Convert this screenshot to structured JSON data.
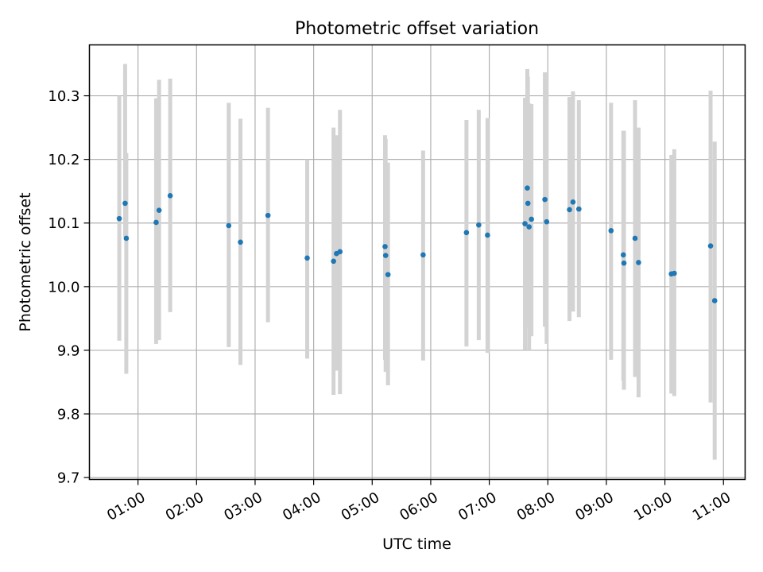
{
  "chart_data": {
    "type": "scatter",
    "title": "Photometric offset variation",
    "xlabel": "UTC time",
    "ylabel": "Photometric offset",
    "x_unit": "hours UTC",
    "xlim": [
      0.17,
      11.37
    ],
    "ylim": [
      9.697,
      10.38
    ],
    "grid": true,
    "x_ticks": [
      {
        "value": 1,
        "label": "01:00"
      },
      {
        "value": 2,
        "label": "02:00"
      },
      {
        "value": 3,
        "label": "03:00"
      },
      {
        "value": 4,
        "label": "04:00"
      },
      {
        "value": 5,
        "label": "05:00"
      },
      {
        "value": 6,
        "label": "06:00"
      },
      {
        "value": 7,
        "label": "07:00"
      },
      {
        "value": 8,
        "label": "08:00"
      },
      {
        "value": 9,
        "label": "09:00"
      },
      {
        "value": 10,
        "label": "10:00"
      },
      {
        "value": 11,
        "label": "11:00"
      }
    ],
    "y_ticks": [
      {
        "value": 9.7,
        "label": "9.7"
      },
      {
        "value": 9.8,
        "label": "9.8"
      },
      {
        "value": 9.9,
        "label": "9.9"
      },
      {
        "value": 10.0,
        "label": "10.0"
      },
      {
        "value": 10.1,
        "label": "10.1"
      },
      {
        "value": 10.2,
        "label": "10.2"
      },
      {
        "value": 10.3,
        "label": "10.3"
      }
    ],
    "point_color": "#1f77b4",
    "errorbar_color": "#d3d3d3",
    "points": [
      {
        "x": 0.68,
        "y": 10.107,
        "lo": 9.915,
        "hi": 10.3
      },
      {
        "x": 0.78,
        "y": 10.131,
        "lo": 10.078,
        "hi": 10.35
      },
      {
        "x": 0.8,
        "y": 10.076,
        "lo": 9.863,
        "hi": 10.21
      },
      {
        "x": 1.31,
        "y": 10.101,
        "lo": 9.91,
        "hi": 10.296
      },
      {
        "x": 1.36,
        "y": 10.12,
        "lo": 9.916,
        "hi": 10.325
      },
      {
        "x": 1.55,
        "y": 10.143,
        "lo": 9.96,
        "hi": 10.327
      },
      {
        "x": 2.55,
        "y": 10.096,
        "lo": 9.905,
        "hi": 10.289
      },
      {
        "x": 2.75,
        "y": 10.07,
        "lo": 9.877,
        "hi": 10.264
      },
      {
        "x": 3.22,
        "y": 10.112,
        "lo": 9.944,
        "hi": 10.281
      },
      {
        "x": 3.89,
        "y": 10.045,
        "lo": 9.887,
        "hi": 10.2
      },
      {
        "x": 4.34,
        "y": 10.04,
        "lo": 9.83,
        "hi": 10.25
      },
      {
        "x": 4.39,
        "y": 10.052,
        "lo": 9.868,
        "hi": 10.238
      },
      {
        "x": 4.45,
        "y": 10.055,
        "lo": 9.831,
        "hi": 10.278
      },
      {
        "x": 5.22,
        "y": 10.063,
        "lo": 9.885,
        "hi": 10.238
      },
      {
        "x": 5.23,
        "y": 10.049,
        "lo": 9.866,
        "hi": 10.232
      },
      {
        "x": 5.27,
        "y": 10.019,
        "lo": 9.845,
        "hi": 10.195
      },
      {
        "x": 5.87,
        "y": 10.05,
        "lo": 9.884,
        "hi": 10.214
      },
      {
        "x": 6.61,
        "y": 10.085,
        "lo": 9.906,
        "hi": 10.262
      },
      {
        "x": 6.82,
        "y": 10.097,
        "lo": 9.916,
        "hi": 10.278
      },
      {
        "x": 6.97,
        "y": 10.081,
        "lo": 9.896,
        "hi": 10.265
      },
      {
        "x": 7.61,
        "y": 10.099,
        "lo": 9.901,
        "hi": 10.297
      },
      {
        "x": 7.65,
        "y": 10.155,
        "lo": 9.955,
        "hi": 10.342
      },
      {
        "x": 7.66,
        "y": 10.131,
        "lo": 9.936,
        "hi": 10.33
      },
      {
        "x": 7.68,
        "y": 10.094,
        "lo": 9.9,
        "hi": 10.288
      },
      {
        "x": 7.72,
        "y": 10.106,
        "lo": 9.922,
        "hi": 10.287
      },
      {
        "x": 7.95,
        "y": 10.137,
        "lo": 9.937,
        "hi": 10.337
      },
      {
        "x": 7.98,
        "y": 10.102,
        "lo": 9.91,
        "hi": 10.326
      },
      {
        "x": 8.37,
        "y": 10.121,
        "lo": 9.946,
        "hi": 10.298
      },
      {
        "x": 8.43,
        "y": 10.133,
        "lo": 9.961,
        "hi": 10.307
      },
      {
        "x": 8.53,
        "y": 10.122,
        "lo": 9.952,
        "hi": 10.293
      },
      {
        "x": 9.08,
        "y": 10.088,
        "lo": 9.885,
        "hi": 10.289
      },
      {
        "x": 9.29,
        "y": 10.05,
        "lo": 9.852,
        "hi": 10.245
      },
      {
        "x": 9.3,
        "y": 10.037,
        "lo": 9.838,
        "hi": 10.245
      },
      {
        "x": 9.49,
        "y": 10.076,
        "lo": 9.858,
        "hi": 10.293
      },
      {
        "x": 9.55,
        "y": 10.038,
        "lo": 9.826,
        "hi": 10.25
      },
      {
        "x": 10.11,
        "y": 10.02,
        "lo": 9.832,
        "hi": 10.207
      },
      {
        "x": 10.16,
        "y": 10.021,
        "lo": 9.828,
        "hi": 10.216
      },
      {
        "x": 10.78,
        "y": 10.064,
        "lo": 9.818,
        "hi": 10.308
      },
      {
        "x": 10.85,
        "y": 9.978,
        "lo": 9.728,
        "hi": 10.228
      }
    ]
  }
}
